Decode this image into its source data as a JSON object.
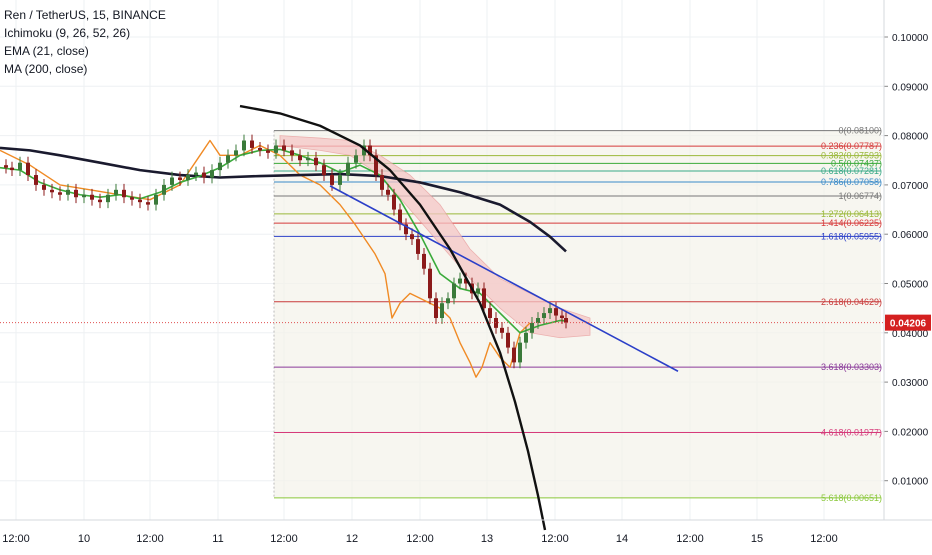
{
  "header": {
    "symbol": "Ren / TetherUS, 15, BINANCE",
    "indicators": [
      "Ichimoku (9, 26, 52, 26)",
      "EMA (21, close)",
      "MA (200, close)"
    ]
  },
  "colors": {
    "grid": "#eef0f3",
    "price_axis_border": "#d6d8dd",
    "fib_fill": "#f3f2ea",
    "candle_up": "#3a7a3a",
    "candle_down": "#8b1a1a",
    "ema": "#3aaa3a",
    "ma200": "#1a1a2e",
    "ichimoku_lagging": "#f08a24",
    "ichimoku_cloud_bear": "#f5c6c6",
    "ichimoku_cloud_bull": "#cfe8cf",
    "trendline": "#2b3fc8",
    "curve": "#111111",
    "current_price_bg": "#d42020",
    "current_price_line": "#e05050"
  },
  "chart_data": {
    "type": "candlestick",
    "title": "Ren / TetherUS, 15, BINANCE",
    "y_axis": {
      "ticks": [
        "0.10000",
        "0.09000",
        "0.08000",
        "0.07000",
        "0.06000",
        "0.05000",
        "0.04000",
        "0.03000",
        "0.02000",
        "0.01000"
      ],
      "tick_values": [
        0.1,
        0.09,
        0.08,
        0.07,
        0.06,
        0.05,
        0.04,
        0.03,
        0.02,
        0.01
      ],
      "ylim": [
        0.0,
        0.105
      ]
    },
    "x_axis": {
      "ticks": [
        "12:00",
        "10",
        "12:00",
        "11",
        "12:00",
        "12",
        "12:00",
        "13",
        "12:00",
        "14",
        "12:00",
        "15",
        "12:00"
      ]
    },
    "current_price": {
      "label": "0.04206",
      "value": 0.04206
    },
    "fib_levels": [
      {
        "label": "0(0.08100)",
        "value": 0.081,
        "color": "#777777"
      },
      {
        "label": "0.236(0.07787)",
        "value": 0.07787,
        "color": "#d63a3a"
      },
      {
        "label": "0.382(0.07593)",
        "value": 0.07593,
        "color": "#9ab83a"
      },
      {
        "label": "0.5(0.07437)",
        "value": 0.07437,
        "color": "#3aaa3a"
      },
      {
        "label": "0.618(0.07281)",
        "value": 0.07281,
        "color": "#3aaa88"
      },
      {
        "label": "0.786(0.07058)",
        "value": 0.07058,
        "color": "#3a8ac8"
      },
      {
        "label": "1(0.06774)",
        "value": 0.06774,
        "color": "#777777"
      },
      {
        "label": "1.272(0.06413)",
        "value": 0.06413,
        "color": "#9ab83a"
      },
      {
        "label": "1.414(0.06225)",
        "value": 0.06225,
        "color": "#d63a3a"
      },
      {
        "label": "1.618(0.05955)",
        "value": 0.05955,
        "color": "#2b3fc8"
      },
      {
        "label": "2.618(0.04629)",
        "value": 0.04629,
        "color": "#c83a3a"
      },
      {
        "label": "3.618(0.03303)",
        "value": 0.03303,
        "color": "#8a3a9a"
      },
      {
        "label": "4.618(0.01977)",
        "value": 0.01977,
        "color": "#d63a7a"
      },
      {
        "label": "5.618(0.00651)",
        "value": 0.00651,
        "color": "#8ac83a"
      }
    ],
    "price_series": [
      [
        0,
        0.074
      ],
      [
        6,
        0.0735
      ],
      [
        12,
        0.073
      ],
      [
        20,
        0.0745
      ],
      [
        28,
        0.072
      ],
      [
        36,
        0.07
      ],
      [
        44,
        0.069
      ],
      [
        52,
        0.0685
      ],
      [
        60,
        0.068
      ],
      [
        68,
        0.069
      ],
      [
        76,
        0.0675
      ],
      [
        84,
        0.068
      ],
      [
        92,
        0.067
      ],
      [
        100,
        0.0665
      ],
      [
        108,
        0.068
      ],
      [
        116,
        0.069
      ],
      [
        124,
        0.0675
      ],
      [
        132,
        0.067
      ],
      [
        140,
        0.0665
      ],
      [
        148,
        0.066
      ],
      [
        156,
        0.068
      ],
      [
        164,
        0.07
      ],
      [
        172,
        0.0715
      ],
      [
        180,
        0.071
      ],
      [
        188,
        0.072
      ],
      [
        196,
        0.0725
      ],
      [
        204,
        0.0715
      ],
      [
        212,
        0.073
      ],
      [
        220,
        0.0745
      ],
      [
        228,
        0.076
      ],
      [
        236,
        0.077
      ],
      [
        244,
        0.079
      ],
      [
        252,
        0.0775
      ],
      [
        260,
        0.077
      ],
      [
        268,
        0.0765
      ],
      [
        276,
        0.078
      ],
      [
        284,
        0.077
      ],
      [
        292,
        0.076
      ],
      [
        300,
        0.075
      ],
      [
        308,
        0.0755
      ],
      [
        316,
        0.074
      ],
      [
        324,
        0.072
      ],
      [
        332,
        0.07
      ],
      [
        340,
        0.072
      ],
      [
        348,
        0.0745
      ],
      [
        356,
        0.076
      ],
      [
        364,
        0.078
      ],
      [
        370,
        0.076
      ],
      [
        376,
        0.072
      ],
      [
        382,
        0.069
      ],
      [
        388,
        0.068
      ],
      [
        394,
        0.065
      ],
      [
        400,
        0.062
      ],
      [
        406,
        0.06
      ],
      [
        412,
        0.059
      ],
      [
        418,
        0.056
      ],
      [
        424,
        0.053
      ],
      [
        430,
        0.047
      ],
      [
        436,
        0.043
      ],
      [
        442,
        0.046
      ],
      [
        448,
        0.047
      ],
      [
        454,
        0.05
      ],
      [
        460,
        0.051
      ],
      [
        466,
        0.05
      ],
      [
        472,
        0.048
      ],
      [
        478,
        0.049
      ],
      [
        484,
        0.045
      ],
      [
        490,
        0.043
      ],
      [
        496,
        0.041
      ],
      [
        502,
        0.04
      ],
      [
        508,
        0.037
      ],
      [
        514,
        0.034
      ],
      [
        520,
        0.038
      ],
      [
        526,
        0.04
      ],
      [
        532,
        0.042
      ],
      [
        538,
        0.043
      ],
      [
        544,
        0.044
      ],
      [
        550,
        0.045
      ],
      [
        556,
        0.0435
      ],
      [
        562,
        0.043
      ],
      [
        566,
        0.0421
      ]
    ],
    "ema_series": [
      [
        0,
        0.0735
      ],
      [
        20,
        0.073
      ],
      [
        40,
        0.0705
      ],
      [
        60,
        0.069
      ],
      [
        80,
        0.068
      ],
      [
        100,
        0.0675
      ],
      [
        120,
        0.068
      ],
      [
        140,
        0.0672
      ],
      [
        160,
        0.0685
      ],
      [
        180,
        0.0705
      ],
      [
        200,
        0.0718
      ],
      [
        220,
        0.0735
      ],
      [
        240,
        0.076
      ],
      [
        260,
        0.077
      ],
      [
        280,
        0.0772
      ],
      [
        300,
        0.076
      ],
      [
        320,
        0.0745
      ],
      [
        340,
        0.0725
      ],
      [
        360,
        0.074
      ],
      [
        380,
        0.072
      ],
      [
        400,
        0.067
      ],
      [
        420,
        0.06
      ],
      [
        440,
        0.052
      ],
      [
        460,
        0.049
      ],
      [
        480,
        0.048
      ],
      [
        500,
        0.044
      ],
      [
        520,
        0.04
      ],
      [
        540,
        0.0415
      ],
      [
        560,
        0.0425
      ],
      [
        566,
        0.0424
      ]
    ],
    "ma200_series": [
      [
        0,
        0.0775
      ],
      [
        30,
        0.077
      ],
      [
        60,
        0.076
      ],
      [
        100,
        0.0745
      ],
      [
        140,
        0.073
      ],
      [
        180,
        0.072
      ],
      [
        220,
        0.0715
      ],
      [
        260,
        0.0718
      ],
      [
        300,
        0.072
      ],
      [
        340,
        0.0722
      ],
      [
        380,
        0.0718
      ],
      [
        420,
        0.0705
      ],
      [
        460,
        0.0685
      ],
      [
        500,
        0.066
      ],
      [
        530,
        0.0625
      ],
      [
        550,
        0.0595
      ],
      [
        566,
        0.0565
      ]
    ],
    "lagging_span": [
      [
        0,
        0.077
      ],
      [
        30,
        0.074
      ],
      [
        60,
        0.07
      ],
      [
        90,
        0.069
      ],
      [
        120,
        0.068
      ],
      [
        150,
        0.067
      ],
      [
        180,
        0.07
      ],
      [
        200,
        0.076
      ],
      [
        210,
        0.079
      ],
      [
        220,
        0.076
      ],
      [
        240,
        0.076
      ],
      [
        260,
        0.078
      ],
      [
        280,
        0.076
      ],
      [
        300,
        0.072
      ],
      [
        320,
        0.07
      ],
      [
        340,
        0.066
      ],
      [
        355,
        0.062
      ],
      [
        365,
        0.059
      ],
      [
        375,
        0.056
      ],
      [
        385,
        0.052
      ],
      [
        392,
        0.043
      ],
      [
        400,
        0.046
      ],
      [
        410,
        0.048
      ],
      [
        420,
        0.047
      ],
      [
        430,
        0.046
      ],
      [
        440,
        0.045
      ],
      [
        450,
        0.043
      ],
      [
        460,
        0.038
      ],
      [
        470,
        0.034
      ],
      [
        476,
        0.031
      ],
      [
        482,
        0.033
      ],
      [
        490,
        0.038
      ],
      [
        500,
        0.035
      ],
      [
        510,
        0.033
      ],
      [
        520,
        0.04
      ],
      [
        530,
        0.042
      ]
    ],
    "cloud_top": [
      [
        280,
        0.08
      ],
      [
        320,
        0.0795
      ],
      [
        350,
        0.079
      ],
      [
        380,
        0.076
      ],
      [
        410,
        0.072
      ],
      [
        440,
        0.066
      ],
      [
        470,
        0.057
      ],
      [
        500,
        0.051
      ],
      [
        530,
        0.048
      ],
      [
        560,
        0.045
      ],
      [
        590,
        0.043
      ]
    ],
    "cloud_bottom": [
      [
        280,
        0.078
      ],
      [
        320,
        0.077
      ],
      [
        350,
        0.076
      ],
      [
        380,
        0.072
      ],
      [
        410,
        0.065
      ],
      [
        440,
        0.058
      ],
      [
        470,
        0.051
      ],
      [
        500,
        0.045
      ],
      [
        530,
        0.04
      ],
      [
        560,
        0.039
      ],
      [
        590,
        0.0395
      ]
    ],
    "trendline": [
      [
        330,
        0.0698
      ],
      [
        678,
        0.0322
      ]
    ],
    "curve": [
      [
        240,
        0.086
      ],
      [
        280,
        0.0845
      ],
      [
        320,
        0.082
      ],
      [
        360,
        0.078
      ],
      [
        390,
        0.073
      ],
      [
        420,
        0.066
      ],
      [
        450,
        0.057
      ],
      [
        480,
        0.046
      ],
      [
        500,
        0.036
      ],
      [
        515,
        0.026
      ],
      [
        528,
        0.016
      ],
      [
        538,
        0.007
      ],
      [
        545,
        0.0
      ]
    ]
  }
}
